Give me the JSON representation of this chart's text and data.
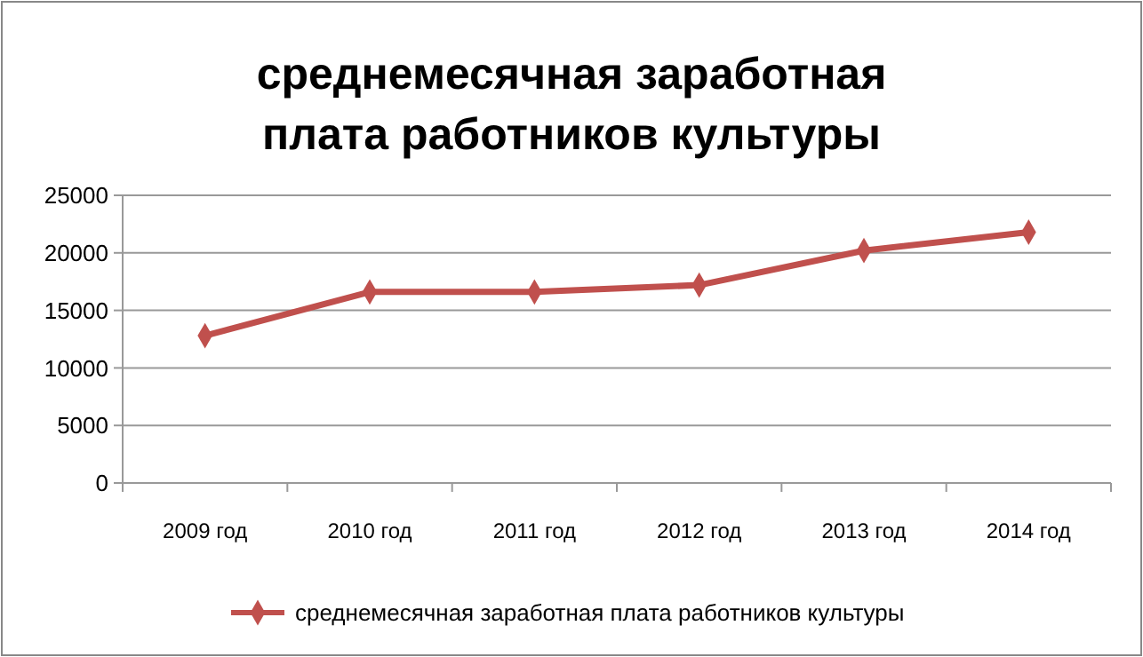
{
  "chart_data": {
    "type": "line",
    "title": "среднемесячная заработная плата работников культуры",
    "categories": [
      "2009 год",
      "2010 год",
      "2011 год",
      "2012 год",
      "2013 год",
      "2014 год"
    ],
    "series": [
      {
        "name": "среднемесячная заработная плата работников культуры",
        "color": "#c0504d",
        "values": [
          12800,
          16600,
          16600,
          17200,
          20200,
          21800
        ]
      }
    ],
    "ylim": [
      0,
      25000
    ],
    "yticks": [
      0,
      5000,
      10000,
      15000,
      20000,
      25000
    ],
    "grid": "y",
    "legend": "bottom",
    "marker": "diamond",
    "line_style": "solid"
  }
}
